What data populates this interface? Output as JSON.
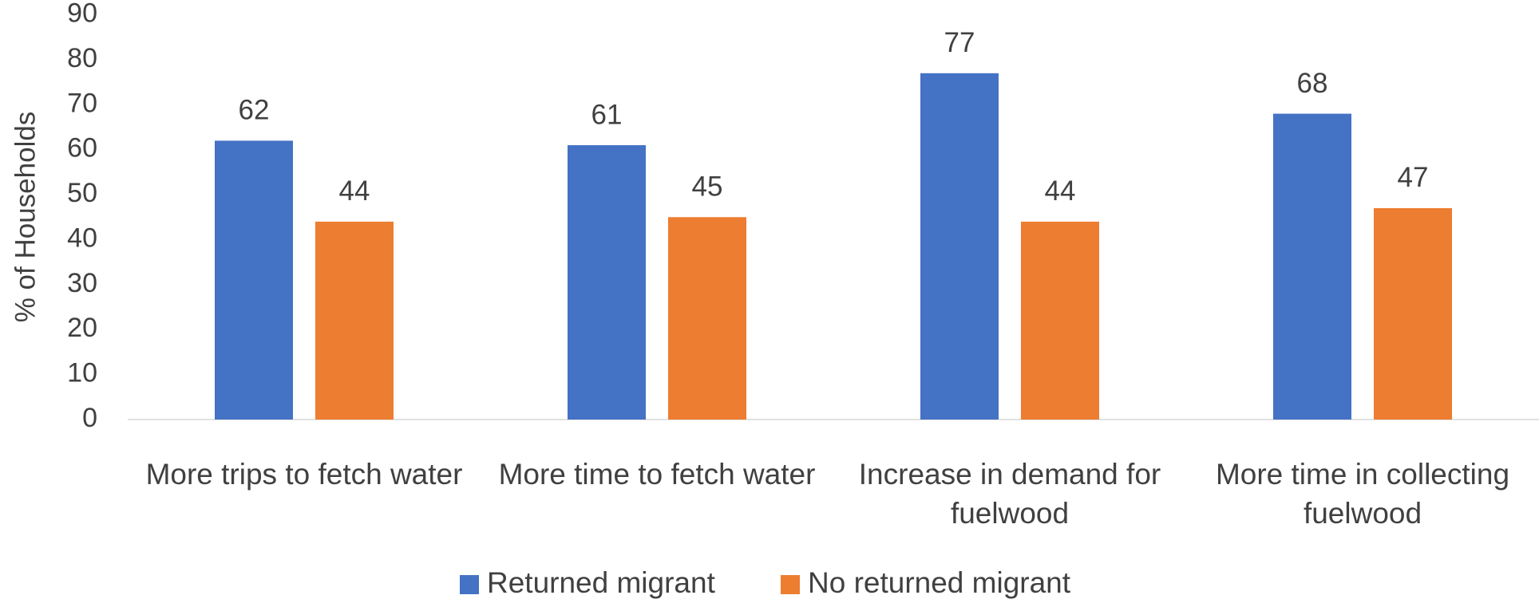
{
  "chart_data": {
    "type": "bar",
    "y_label": "% of Households",
    "categories": [
      "More trips to fetch water",
      "More time to fetch water",
      "Increase in demand for fuelwood",
      "More time in collecting fuelwood"
    ],
    "series": [
      {
        "name": "Returned migrant",
        "color": "#4472c4",
        "values": [
          62,
          61,
          77,
          68
        ]
      },
      {
        "name": "No returned migrant",
        "color": "#ed7d31",
        "values": [
          44,
          45,
          44,
          47
        ]
      }
    ],
    "ylim": [
      0,
      90
    ],
    "yticks": [
      0,
      10,
      20,
      30,
      40,
      50,
      60,
      70,
      80,
      90
    ],
    "grid": false,
    "legend": "bottom"
  }
}
